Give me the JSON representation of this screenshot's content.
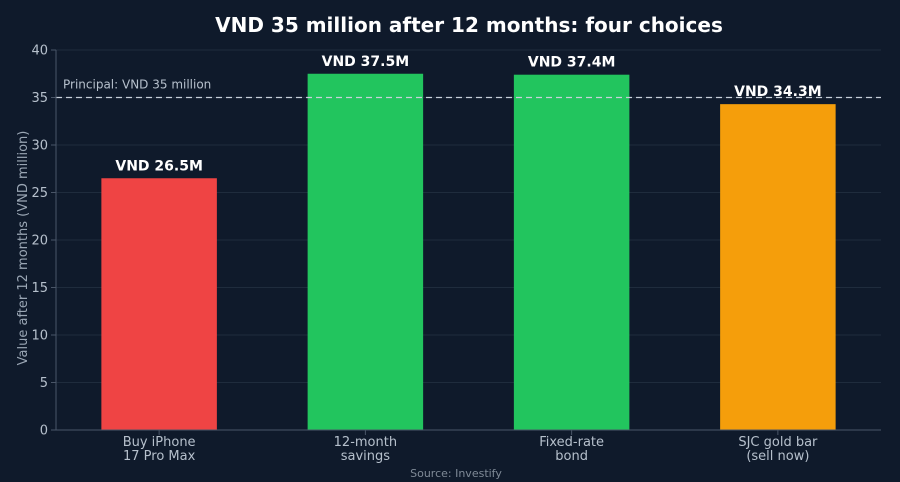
{
  "chart_data": {
    "type": "bar",
    "title": "VND 35 million after 12 months: four choices",
    "xlabel": "",
    "ylabel": "Value after 12 months (VND million)",
    "ylim": [
      0,
      40
    ],
    "yticks": [
      0,
      5,
      10,
      15,
      20,
      25,
      30,
      35,
      40
    ],
    "grid": "horizontal",
    "categories": [
      [
        "Buy iPhone",
        "17 Pro Max"
      ],
      [
        "12-month",
        "savings"
      ],
      [
        "Fixed-rate",
        "bond"
      ],
      [
        "SJC gold bar",
        "(sell now)"
      ]
    ],
    "values": [
      26.5,
      37.5,
      37.4,
      34.3
    ],
    "data_labels": [
      "VND 26.5M",
      "VND 37.5M",
      "VND 37.4M",
      "VND 34.3M"
    ],
    "bar_colors": [
      "#ef4444",
      "#22c55e",
      "#22c55e",
      "#f59e0b"
    ],
    "reference_line": {
      "value": 35,
      "label": "Principal: VND 35 million",
      "color": "#c8d0da"
    },
    "source": "Source: Investify"
  },
  "colors": {
    "background": "#0f1a2b",
    "grid": "#1f2c3d",
    "axis": "#4a5668"
  }
}
